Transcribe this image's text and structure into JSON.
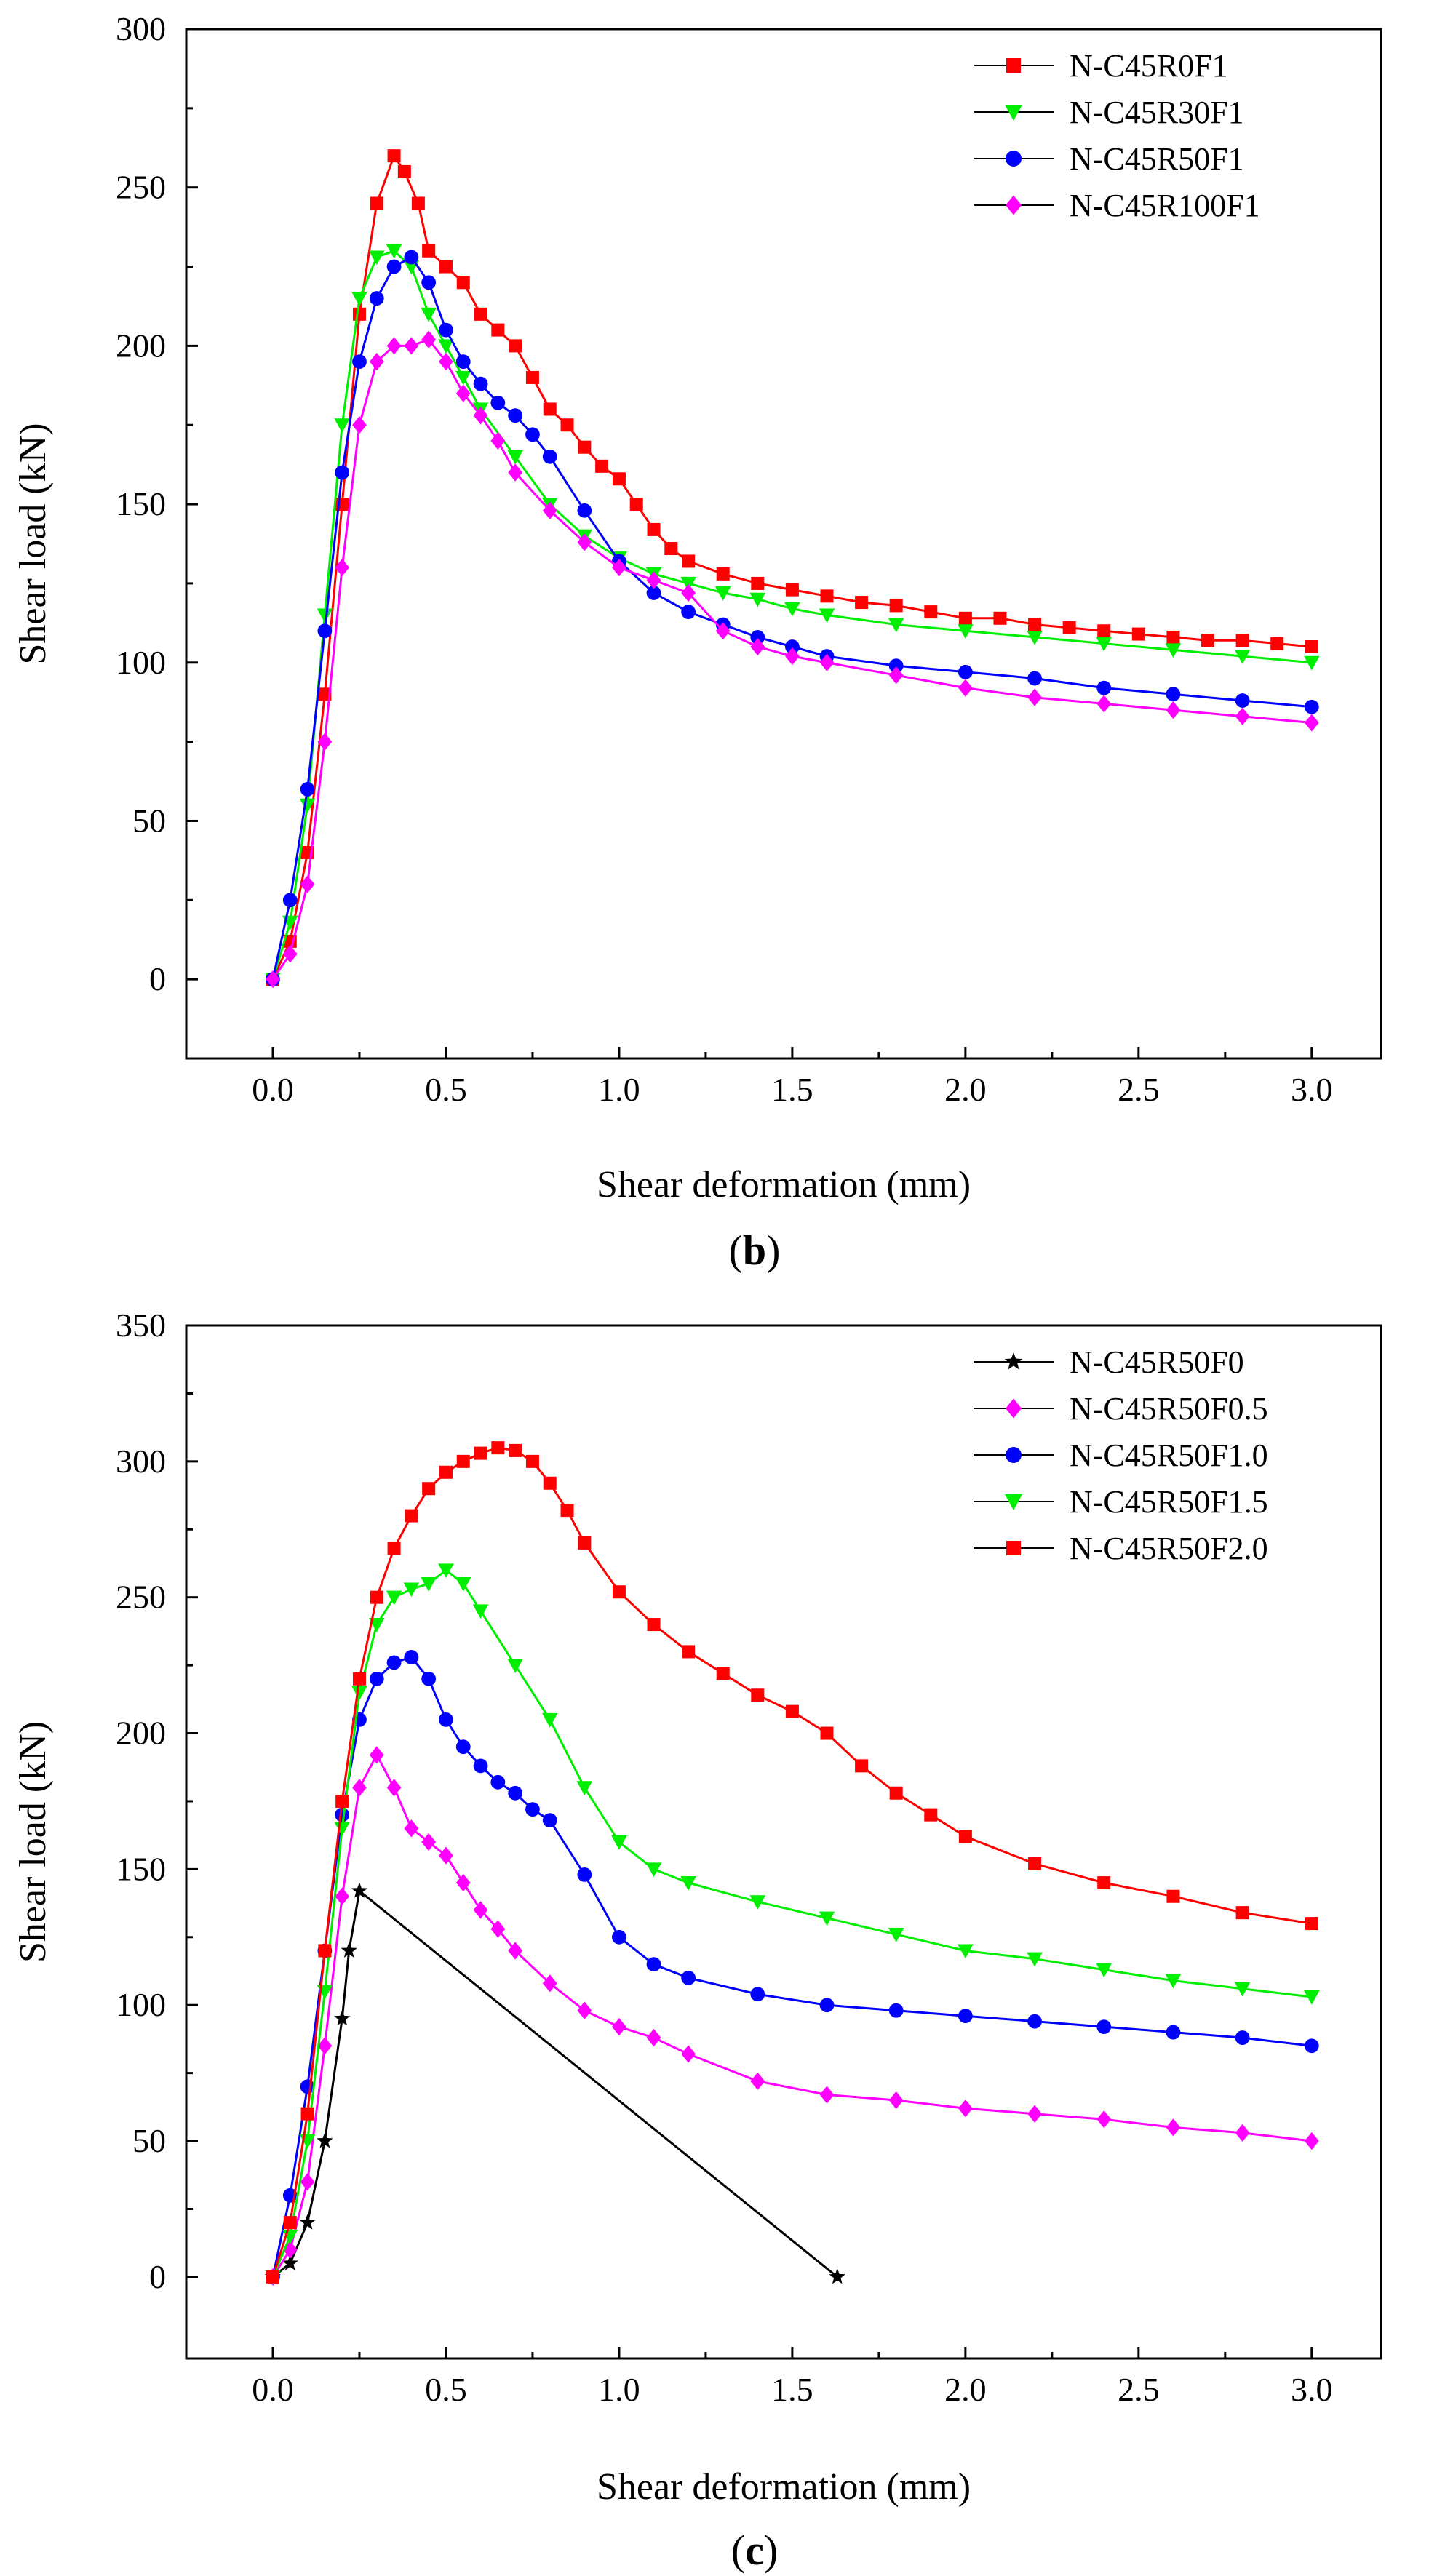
{
  "chart_data": [
    {
      "type": "line",
      "panel_label": "b",
      "caption_open": "(",
      "caption_close": ")",
      "xlabel": "Shear deformation (mm)",
      "ylabel": "Shear load (kN)",
      "xlim": [
        -0.25,
        3.2
      ],
      "ylim": [
        -25,
        300
      ],
      "xticks": [
        0.0,
        0.5,
        1.0,
        1.5,
        2.0,
        2.5,
        3.0
      ],
      "xtick_labels": [
        "0.0",
        "0.5",
        "1.0",
        "1.5",
        "2.0",
        "2.5",
        "3.0"
      ],
      "yticks": [
        0,
        50,
        100,
        150,
        200,
        250,
        300
      ],
      "ytick_labels": [
        "0",
        "50",
        "100",
        "150",
        "200",
        "250",
        "300"
      ],
      "legend_position": "top-right",
      "series": [
        {
          "name": "N-C45R0F1",
          "color": "#ff0000",
          "marker": "square",
          "x": [
            0,
            0.05,
            0.1,
            0.15,
            0.2,
            0.25,
            0.3,
            0.35,
            0.38,
            0.42,
            0.45,
            0.5,
            0.55,
            0.6,
            0.65,
            0.7,
            0.75,
            0.8,
            0.85,
            0.9,
            0.95,
            1.0,
            1.05,
            1.1,
            1.15,
            1.2,
            1.3,
            1.4,
            1.5,
            1.6,
            1.7,
            1.8,
            1.9,
            2.0,
            2.1,
            2.2,
            2.3,
            2.4,
            2.5,
            2.6,
            2.7,
            2.8,
            2.9,
            3.0
          ],
          "y": [
            0,
            12,
            40,
            90,
            150,
            210,
            245,
            260,
            255,
            245,
            230,
            225,
            220,
            210,
            205,
            200,
            190,
            180,
            175,
            168,
            162,
            158,
            150,
            142,
            136,
            132,
            128,
            125,
            123,
            121,
            119,
            118,
            116,
            114,
            114,
            112,
            111,
            110,
            109,
            108,
            107,
            107,
            106,
            105
          ]
        },
        {
          "name": "N-C45R30F1",
          "color": "#00ee00",
          "marker": "triangle-down",
          "x": [
            0,
            0.05,
            0.1,
            0.15,
            0.2,
            0.25,
            0.3,
            0.35,
            0.4,
            0.45,
            0.5,
            0.55,
            0.6,
            0.7,
            0.8,
            0.9,
            1.0,
            1.1,
            1.2,
            1.3,
            1.4,
            1.5,
            1.6,
            1.8,
            2.0,
            2.2,
            2.4,
            2.6,
            2.8,
            3.0
          ],
          "y": [
            0,
            18,
            55,
            115,
            175,
            215,
            228,
            230,
            225,
            210,
            200,
            190,
            180,
            165,
            150,
            140,
            133,
            128,
            125,
            122,
            120,
            117,
            115,
            112,
            110,
            108,
            106,
            104,
            102,
            100
          ]
        },
        {
          "name": "N-C45R50F1",
          "color": "#0000ff",
          "marker": "circle",
          "x": [
            0,
            0.05,
            0.1,
            0.15,
            0.2,
            0.25,
            0.3,
            0.35,
            0.4,
            0.45,
            0.5,
            0.55,
            0.6,
            0.65,
            0.7,
            0.75,
            0.8,
            0.9,
            1.0,
            1.1,
            1.2,
            1.3,
            1.4,
            1.5,
            1.6,
            1.8,
            2.0,
            2.2,
            2.4,
            2.6,
            2.8,
            3.0
          ],
          "y": [
            0,
            25,
            60,
            110,
            160,
            195,
            215,
            225,
            228,
            220,
            205,
            195,
            188,
            182,
            178,
            172,
            165,
            148,
            132,
            122,
            116,
            112,
            108,
            105,
            102,
            99,
            97,
            95,
            92,
            90,
            88,
            86
          ]
        },
        {
          "name": "N-C45R100F1",
          "color": "#ff00ff",
          "marker": "diamond",
          "x": [
            0,
            0.05,
            0.1,
            0.15,
            0.2,
            0.25,
            0.3,
            0.35,
            0.4,
            0.45,
            0.5,
            0.55,
            0.6,
            0.65,
            0.7,
            0.8,
            0.9,
            1.0,
            1.1,
            1.2,
            1.3,
            1.4,
            1.5,
            1.6,
            1.8,
            2.0,
            2.2,
            2.4,
            2.6,
            2.8,
            3.0
          ],
          "y": [
            0,
            8,
            30,
            75,
            130,
            175,
            195,
            200,
            200,
            202,
            195,
            185,
            178,
            170,
            160,
            148,
            138,
            130,
            126,
            122,
            110,
            105,
            102,
            100,
            96,
            92,
            89,
            87,
            85,
            83,
            81
          ]
        }
      ]
    },
    {
      "type": "line",
      "panel_label": "c",
      "caption_open": "(",
      "caption_close": ")",
      "xlabel": "Shear deformation (mm)",
      "ylabel": "Shear load (kN)",
      "xlim": [
        -0.25,
        3.2
      ],
      "ylim": [
        -30,
        350
      ],
      "xticks": [
        0.0,
        0.5,
        1.0,
        1.5,
        2.0,
        2.5,
        3.0
      ],
      "xtick_labels": [
        "0.0",
        "0.5",
        "1.0",
        "1.5",
        "2.0",
        "2.5",
        "3.0"
      ],
      "yticks": [
        0,
        50,
        100,
        150,
        200,
        250,
        300,
        350
      ],
      "ytick_labels": [
        "0",
        "50",
        "100",
        "150",
        "200",
        "250",
        "300",
        "350"
      ],
      "legend_position": "top-right",
      "series": [
        {
          "name": "N-C45R50F0",
          "color": "#000000",
          "marker": "star",
          "x": [
            0,
            0.05,
            0.1,
            0.15,
            0.2,
            0.22,
            0.25,
            1.63
          ],
          "y": [
            0,
            5,
            20,
            50,
            95,
            120,
            142,
            0
          ]
        },
        {
          "name": "N-C45R50F0.5",
          "color": "#ff00ff",
          "marker": "diamond",
          "x": [
            0,
            0.05,
            0.1,
            0.15,
            0.2,
            0.25,
            0.3,
            0.35,
            0.4,
            0.45,
            0.5,
            0.55,
            0.6,
            0.65,
            0.7,
            0.8,
            0.9,
            1.0,
            1.1,
            1.2,
            1.4,
            1.6,
            1.8,
            2.0,
            2.2,
            2.4,
            2.6,
            2.8,
            3.0
          ],
          "y": [
            0,
            10,
            35,
            85,
            140,
            180,
            192,
            180,
            165,
            160,
            155,
            145,
            135,
            128,
            120,
            108,
            98,
            92,
            88,
            82,
            72,
            67,
            65,
            62,
            60,
            58,
            55,
            53,
            50
          ]
        },
        {
          "name": "N-C45R50F1.0",
          "color": "#0000ff",
          "marker": "circle",
          "x": [
            0,
            0.05,
            0.1,
            0.15,
            0.2,
            0.25,
            0.3,
            0.35,
            0.4,
            0.45,
            0.5,
            0.55,
            0.6,
            0.65,
            0.7,
            0.75,
            0.8,
            0.9,
            1.0,
            1.1,
            1.2,
            1.4,
            1.6,
            1.8,
            2.0,
            2.2,
            2.4,
            2.6,
            2.8,
            3.0
          ],
          "y": [
            0,
            30,
            70,
            120,
            170,
            205,
            220,
            226,
            228,
            220,
            205,
            195,
            188,
            182,
            178,
            172,
            168,
            148,
            125,
            115,
            110,
            104,
            100,
            98,
            96,
            94,
            92,
            90,
            88,
            85
          ]
        },
        {
          "name": "N-C45R50F1.5",
          "color": "#00ee00",
          "marker": "triangle-down",
          "x": [
            0,
            0.05,
            0.1,
            0.15,
            0.2,
            0.25,
            0.3,
            0.35,
            0.4,
            0.45,
            0.5,
            0.55,
            0.6,
            0.7,
            0.8,
            0.9,
            1.0,
            1.1,
            1.2,
            1.4,
            1.6,
            1.8,
            2.0,
            2.2,
            2.4,
            2.6,
            2.8,
            3.0
          ],
          "y": [
            0,
            15,
            50,
            105,
            165,
            215,
            240,
            250,
            253,
            255,
            260,
            255,
            245,
            225,
            205,
            180,
            160,
            150,
            145,
            138,
            132,
            126,
            120,
            117,
            113,
            109,
            106,
            103
          ]
        },
        {
          "name": "N-C45R50F2.0",
          "color": "#ff0000",
          "marker": "square",
          "x": [
            0,
            0.05,
            0.1,
            0.15,
            0.2,
            0.25,
            0.3,
            0.35,
            0.4,
            0.45,
            0.5,
            0.55,
            0.6,
            0.65,
            0.7,
            0.75,
            0.8,
            0.85,
            0.9,
            1.0,
            1.1,
            1.2,
            1.3,
            1.4,
            1.5,
            1.6,
            1.7,
            1.8,
            1.9,
            2.0,
            2.2,
            2.4,
            2.6,
            2.8,
            3.0
          ],
          "y": [
            0,
            20,
            60,
            120,
            175,
            220,
            250,
            268,
            280,
            290,
            296,
            300,
            303,
            305,
            304,
            300,
            292,
            282,
            270,
            252,
            240,
            230,
            222,
            214,
            208,
            200,
            188,
            178,
            170,
            162,
            152,
            145,
            140,
            134,
            130
          ]
        }
      ]
    }
  ]
}
